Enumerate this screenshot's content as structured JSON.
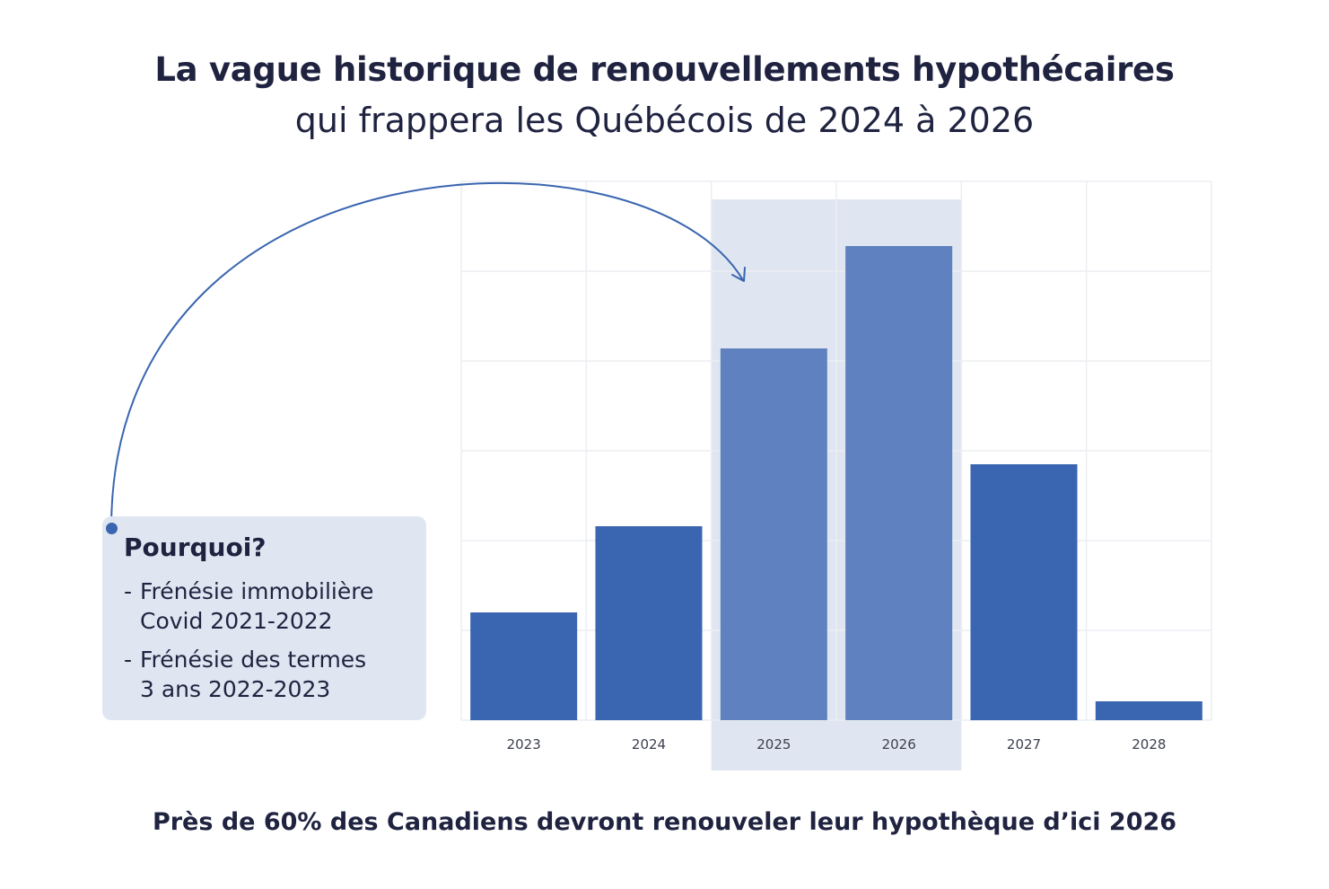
{
  "header": {
    "title": "La vague historique de renouvellements hypothécaires",
    "subtitle": "qui frappera les Québécois de 2024 à 2026"
  },
  "note": {
    "title": "Pourquoi?",
    "items": [
      {
        "dash": "-",
        "line1": "Frénésie immobilière",
        "line2": "Covid 2021-2022"
      },
      {
        "dash": "-",
        "line1": "Frénésie des termes",
        "line2": "3 ans 2022-2023"
      }
    ]
  },
  "footer": {
    "text": "Près de 60% des Canadiens devront renouveler leur hypothèque d’ici 2026"
  },
  "colors": {
    "bar": "#3a65b0",
    "bar_highlight": "#5f81bf",
    "highlight_band": "#dfe6f1",
    "text": "#1f2340",
    "grid": "#eceef2"
  },
  "chart_data": {
    "type": "bar",
    "categories": [
      "2023",
      "2024",
      "2025",
      "2026",
      "2027",
      "2028"
    ],
    "values": [
      20,
      36,
      69,
      88,
      47.5,
      3.5
    ],
    "highlighted": [
      "2025",
      "2026"
    ],
    "ylim": [
      0,
      100
    ],
    "grid": true,
    "y_ticks_shown": false,
    "title": "",
    "xlabel": "",
    "ylabel": ""
  }
}
